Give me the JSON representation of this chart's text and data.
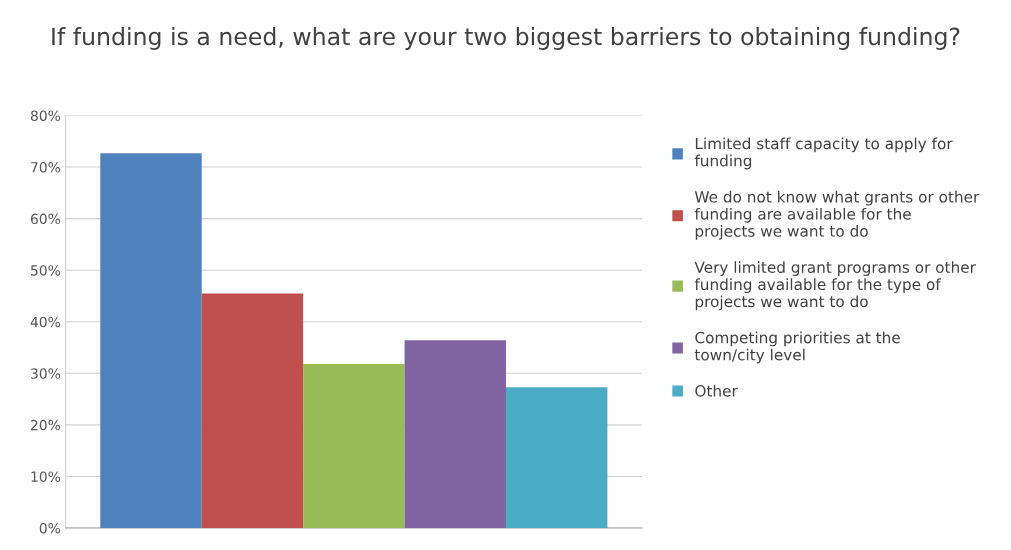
{
  "chart_data": {
    "type": "bar",
    "title": "If funding is a need, what are your two biggest barriers to obtaining funding?",
    "categories": [
      null
    ],
    "series": [
      {
        "name": "Limited staff capacity to apply for funding",
        "color": "#4f81bd",
        "values": [
          72.7
        ]
      },
      {
        "name": "We do not know what grants or other funding are available for the projects we want to do",
        "color": "#c0504d",
        "values": [
          45.5
        ]
      },
      {
        "name": "Very limited grant programs or other funding available for the type of projects we want to do",
        "color": "#9bbb59",
        "values": [
          31.8
        ]
      },
      {
        "name": "Competing priorities at the town/city level",
        "color": "#8064a2",
        "values": [
          36.4
        ]
      },
      {
        "name": "Other",
        "color": "#4bacc6",
        "values": [
          27.3
        ]
      }
    ],
    "ylim": [
      0,
      80
    ],
    "yticks": [
      {
        "value": 0,
        "label": "0%"
      },
      {
        "value": 10,
        "label": "10%"
      },
      {
        "value": 20,
        "label": "20%"
      },
      {
        "value": 30,
        "label": "30%"
      },
      {
        "value": 40,
        "label": "40%"
      },
      {
        "value": 50,
        "label": "50%"
      },
      {
        "value": 60,
        "label": "60%"
      },
      {
        "value": 70,
        "label": "70%"
      },
      {
        "value": 80,
        "label": "80%"
      }
    ],
    "grid": "y",
    "legend": "right"
  }
}
